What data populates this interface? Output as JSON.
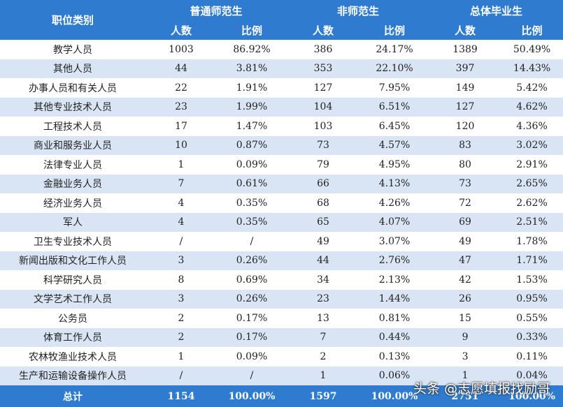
{
  "table": {
    "header": {
      "category": "职位类别",
      "groups": [
        "普通师范生",
        "非师范生",
        "总体毕业生"
      ],
      "subheaders": [
        "人数",
        "比例",
        "人数",
        "比例",
        "人数",
        "比例"
      ]
    },
    "rows": [
      [
        "教学人员",
        "1003",
        "86.92%",
        "386",
        "24.17%",
        "1389",
        "50.49%"
      ],
      [
        "其他人员",
        "44",
        "3.81%",
        "353",
        "22.10%",
        "397",
        "14.43%"
      ],
      [
        "办事人员和有关人员",
        "22",
        "1.91%",
        "127",
        "7.95%",
        "149",
        "5.42%"
      ],
      [
        "其他专业技术人员",
        "23",
        "1.99%",
        "104",
        "6.51%",
        "127",
        "4.62%"
      ],
      [
        "工程技术人员",
        "17",
        "1.47%",
        "103",
        "6.45%",
        "120",
        "4.36%"
      ],
      [
        "商业和服务业人员",
        "10",
        "0.87%",
        "73",
        "4.57%",
        "83",
        "3.02%"
      ],
      [
        "法律专业人员",
        "1",
        "0.09%",
        "79",
        "4.95%",
        "80",
        "2.91%"
      ],
      [
        "金融业务人员",
        "7",
        "0.61%",
        "66",
        "4.13%",
        "73",
        "2.65%"
      ],
      [
        "经济业务人员",
        "4",
        "0.35%",
        "68",
        "4.26%",
        "72",
        "2.62%"
      ],
      [
        "军人",
        "4",
        "0.35%",
        "65",
        "4.07%",
        "69",
        "2.51%"
      ],
      [
        "卫生专业技术人员",
        "/",
        "/",
        "49",
        "3.07%",
        "49",
        "1.78%"
      ],
      [
        "新闻出版和文化工作人员",
        "3",
        "0.26%",
        "44",
        "2.76%",
        "47",
        "1.71%"
      ],
      [
        "科学研究人员",
        "8",
        "0.69%",
        "34",
        "2.13%",
        "42",
        "1.53%"
      ],
      [
        "文学艺术工作人员",
        "3",
        "0.26%",
        "23",
        "1.44%",
        "26",
        "0.95%"
      ],
      [
        "公务员",
        "2",
        "0.17%",
        "13",
        "0.81%",
        "15",
        "0.55%"
      ],
      [
        "体育工作人员",
        "2",
        "0.17%",
        "7",
        "0.44%",
        "9",
        "0.33%"
      ],
      [
        "农林牧渔业技术人员",
        "1",
        "0.09%",
        "2",
        "0.13%",
        "3",
        "0.11%"
      ],
      [
        "生产和运输设备操作人员",
        "/",
        "/",
        "1",
        "0.06%",
        "1",
        "0.04%"
      ]
    ],
    "total": [
      "总计",
      "1154",
      "100.00%",
      "1597",
      "100.00%",
      "2751",
      "100.00%"
    ]
  },
  "watermark": "头条 @志愿填报找励哥"
}
